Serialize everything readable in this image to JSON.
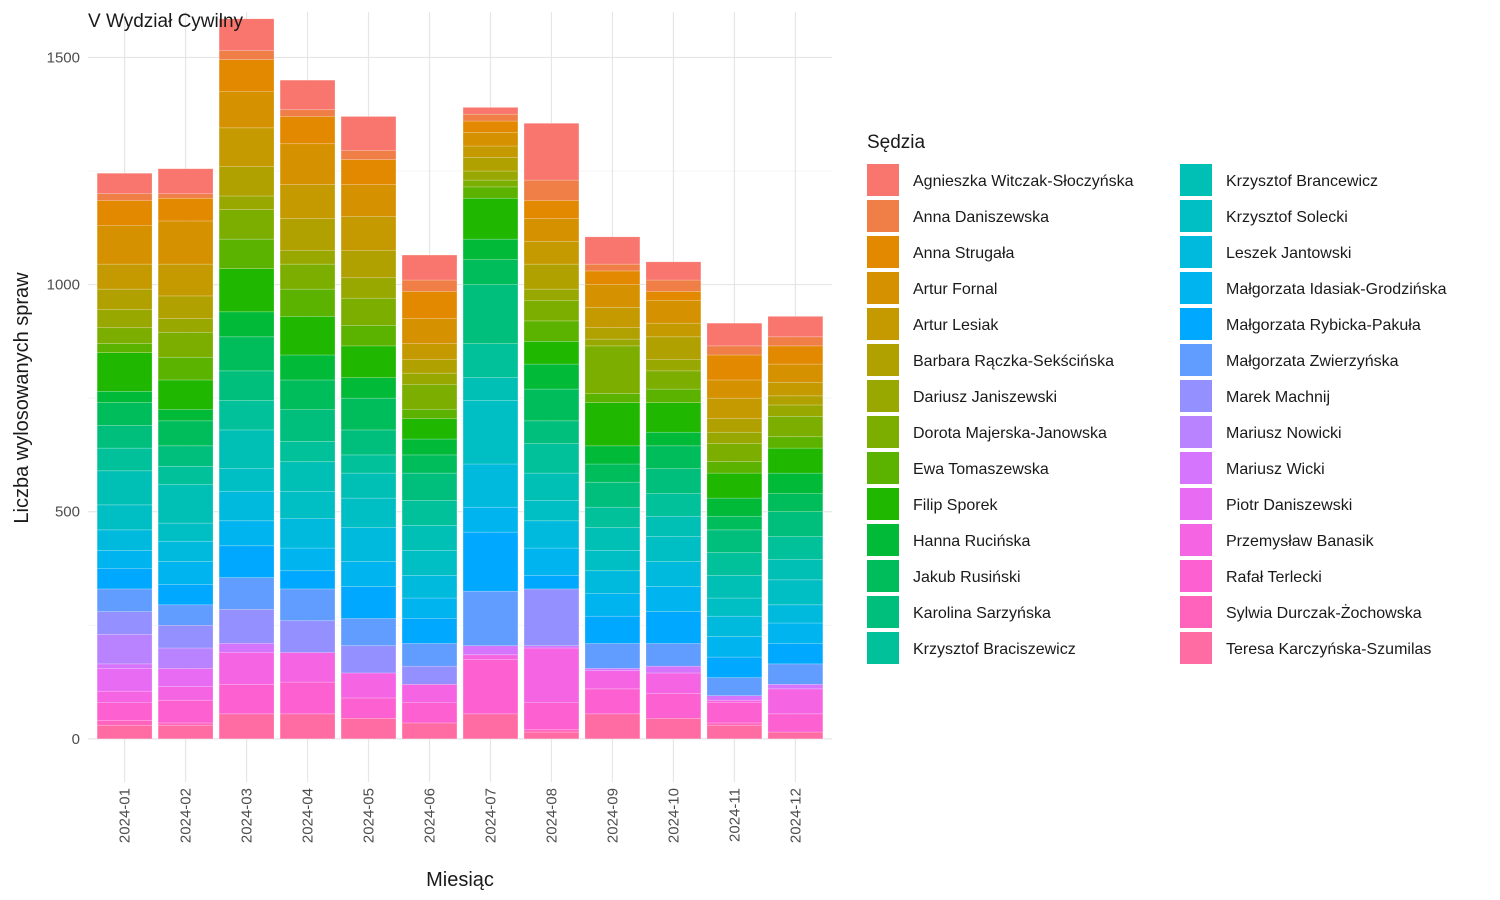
{
  "chart_data": {
    "type": "bar",
    "stacked": true,
    "title": "V Wydział Cywilny",
    "xlabel": "Miesiąc",
    "ylabel": "Liczba wylosowanych spraw",
    "ylim": [
      -95,
      1600
    ],
    "yticks": [
      0,
      500,
      1000,
      1500
    ],
    "legend_title": "Sędzia",
    "legend_position": "right",
    "grid": true,
    "categories": [
      "2024-01",
      "2024-02",
      "2024-03",
      "2024-04",
      "2024-05",
      "2024-06",
      "2024-07",
      "2024-08",
      "2024-09",
      "2024-10",
      "2024-11",
      "2024-12"
    ],
    "series": [
      {
        "name": "Agnieszka Witczak-Słoczyńska",
        "color": "#F8766D",
        "values": [
          45,
          55,
          70,
          65,
          75,
          55,
          15,
          125,
          60,
          40,
          50,
          45
        ]
      },
      {
        "name": "Anna Daniszewska",
        "color": "#EF7F47",
        "values": [
          15,
          10,
          20,
          15,
          20,
          25,
          15,
          45,
          15,
          25,
          20,
          20
        ]
      },
      {
        "name": "Anna Strugała",
        "color": "#E38900",
        "values": [
          55,
          50,
          70,
          60,
          55,
          60,
          25,
          40,
          30,
          20,
          55,
          40
        ]
      },
      {
        "name": "Artur Fornal",
        "color": "#D59100",
        "values": [
          85,
          95,
          80,
          90,
          70,
          55,
          30,
          50,
          50,
          50,
          40,
          40
        ]
      },
      {
        "name": "Artur Lesiak",
        "color": "#C49A00",
        "values": [
          55,
          70,
          85,
          75,
          75,
          35,
          25,
          50,
          45,
          30,
          45,
          30
        ]
      },
      {
        "name": "Barbara Rączka-Sekścińska",
        "color": "#B0A100",
        "values": [
          45,
          50,
          65,
          70,
          60,
          30,
          30,
          55,
          25,
          50,
          30,
          20
        ]
      },
      {
        "name": "Dariusz Janiszewski",
        "color": "#99A800",
        "values": [
          40,
          30,
          30,
          30,
          45,
          25,
          20,
          25,
          15,
          25,
          25,
          25
        ]
      },
      {
        "name": "Dorota Majerska-Janowska",
        "color": "#7CAE00",
        "values": [
          35,
          55,
          65,
          55,
          60,
          55,
          15,
          45,
          105,
          40,
          40,
          45
        ]
      },
      {
        "name": "Ewa Tomaszewska",
        "color": "#5BB300",
        "values": [
          20,
          50,
          65,
          60,
          45,
          20,
          25,
          45,
          20,
          30,
          25,
          25
        ]
      },
      {
        "name": "Filip Sporek",
        "color": "#1FB700",
        "values": [
          85,
          65,
          95,
          85,
          70,
          45,
          90,
          50,
          95,
          65,
          55,
          55
        ]
      },
      {
        "name": "Hanna Rucińska",
        "color": "#00BA38",
        "values": [
          25,
          25,
          55,
          55,
          45,
          35,
          45,
          55,
          40,
          30,
          40,
          45
        ]
      },
      {
        "name": "Jakub Rusiński",
        "color": "#00BD5C",
        "values": [
          50,
          55,
          75,
          65,
          70,
          40,
          55,
          70,
          40,
          50,
          30,
          40
        ]
      },
      {
        "name": "Karolina Sarzyńska",
        "color": "#00BF7D",
        "values": [
          50,
          45,
          65,
          70,
          55,
          60,
          130,
          50,
          55,
          55,
          50,
          55
        ]
      },
      {
        "name": "Krzysztof Braciszewicz",
        "color": "#00C19A",
        "values": [
          50,
          40,
          65,
          45,
          40,
          55,
          75,
          65,
          45,
          50,
          50,
          50
        ]
      },
      {
        "name": "Krzysztof Brancewicz",
        "color": "#00C0B5",
        "values": [
          75,
          85,
          85,
          65,
          55,
          55,
          50,
          60,
          50,
          45,
          50,
          45
        ]
      },
      {
        "name": "Krzysztof Solecki",
        "color": "#00BFC4",
        "values": [
          55,
          40,
          50,
          60,
          65,
          55,
          140,
          45,
          45,
          55,
          40,
          55
        ]
      },
      {
        "name": "Leszek Jantowski",
        "color": "#00BADE",
        "values": [
          45,
          45,
          65,
          65,
          75,
          50,
          95,
          60,
          50,
          55,
          45,
          40
        ]
      },
      {
        "name": "Małgorzata Idasiak-Grodzińska",
        "color": "#00B4F0",
        "values": [
          40,
          50,
          55,
          50,
          55,
          45,
          55,
          60,
          50,
          55,
          45,
          45
        ]
      },
      {
        "name": "Małgorzata Rybicka-Pakuła",
        "color": "#00A9FF",
        "values": [
          45,
          45,
          70,
          40,
          70,
          55,
          130,
          30,
          60,
          70,
          45,
          45
        ]
      },
      {
        "name": "Małgorzata Zwierzyńska",
        "color": "#619CFF",
        "values": [
          50,
          45,
          70,
          70,
          60,
          50,
          120,
          0,
          55,
          50,
          40,
          45
        ]
      },
      {
        "name": "Marek Machnij",
        "color": "#9590FF",
        "values": [
          50,
          50,
          75,
          70,
          60,
          40,
          0,
          125,
          0,
          0,
          0,
          0
        ]
      },
      {
        "name": "Mariusz Nowicki",
        "color": "#B983FF",
        "values": [
          65,
          45,
          0,
          0,
          0,
          0,
          0,
          0,
          0,
          0,
          0,
          0
        ]
      },
      {
        "name": "Mariusz Wicki",
        "color": "#D575FE",
        "values": [
          10,
          0,
          20,
          0,
          0,
          0,
          20,
          5,
          5,
          15,
          10,
          10
        ]
      },
      {
        "name": "Piotr Daniszewski",
        "color": "#E76BF3",
        "values": [
          50,
          40,
          0,
          0,
          0,
          0,
          0,
          0,
          0,
          0,
          0,
          0
        ]
      },
      {
        "name": "Przemysław Banasik",
        "color": "#F564E3",
        "values": [
          25,
          30,
          70,
          65,
          55,
          40,
          10,
          120,
          40,
          45,
          5,
          55
        ]
      },
      {
        "name": "Rafał Terlecki",
        "color": "#FD61D1",
        "values": [
          40,
          50,
          65,
          70,
          45,
          45,
          120,
          60,
          55,
          55,
          45,
          40
        ]
      },
      {
        "name": "Sylwia Durczak-Żochowska",
        "color": "#FF63BC",
        "values": [
          10,
          5,
          0,
          0,
          0,
          0,
          0,
          5,
          0,
          0,
          5,
          0
        ]
      },
      {
        "name": "Teresa Karczyńska-Szumilas",
        "color": "#FF6BA3",
        "values": [
          30,
          30,
          55,
          55,
          45,
          35,
          55,
          15,
          55,
          45,
          30,
          15
        ]
      }
    ]
  }
}
